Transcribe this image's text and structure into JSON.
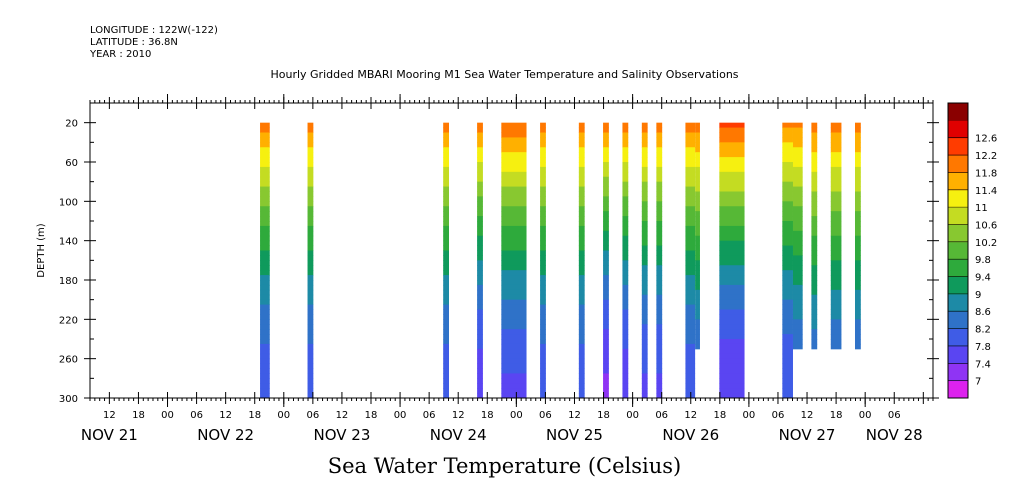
{
  "header": {
    "longitude": "LONGITUDE : 122W(-122)",
    "latitude": "LATITUDE : 36.8N",
    "year": "YEAR : 2010"
  },
  "title": "Hourly Gridded MBARI Mooring M1 Sea Water Temperature and Salinity Observations",
  "units_label": "Sea Water Temperature (Celsius)",
  "chart_data": {
    "type": "heatmap",
    "title": "Hourly Gridded MBARI Mooring M1 Sea Water Temperature and Salinity Observations",
    "ylabel": "DEPTH (m)",
    "colorbar_label": "Sea Water Temperature (Celsius)",
    "y_range": [
      300,
      0
    ],
    "y_ticks": [
      20,
      60,
      100,
      140,
      180,
      220,
      260,
      300
    ],
    "x_range_hours": [
      -16,
      158
    ],
    "x_hour_labels": [
      "12",
      "18",
      "00",
      "06",
      "12",
      "18",
      "00",
      "06",
      "12",
      "18",
      "00",
      "06",
      "12",
      "18",
      "00",
      "06",
      "12",
      "18",
      "00",
      "06",
      "12",
      "18",
      "00",
      "06",
      "12",
      "18",
      "00",
      "06"
    ],
    "x_hour_label_positions": [
      -12,
      -6,
      0,
      6,
      12,
      18,
      24,
      30,
      36,
      42,
      48,
      54,
      60,
      66,
      72,
      78,
      84,
      90,
      96,
      102,
      108,
      114,
      120,
      126,
      132,
      138,
      144,
      150
    ],
    "x_day_labels": [
      {
        "label": "NOV 21",
        "hour": -12
      },
      {
        "label": "NOV 22",
        "hour": 12
      },
      {
        "label": "NOV 23",
        "hour": 36
      },
      {
        "label": "NOV 24",
        "hour": 60
      },
      {
        "label": "NOV 25",
        "hour": 84
      },
      {
        "label": "NOV 26",
        "hour": 108
      },
      {
        "label": "NOV 27",
        "hour": 132
      },
      {
        "label": "NOV 28",
        "hour": 150
      }
    ],
    "color_levels": [
      7,
      7.4,
      7.8,
      8.2,
      8.6,
      9,
      9.4,
      9.8,
      10.2,
      10.6,
      11,
      11.4,
      11.8,
      12.2,
      12.6
    ],
    "colorbar_colors": [
      "#dd22ee",
      "#8f34f4",
      "#5a45f2",
      "#3f5ce6",
      "#2f72c8",
      "#1d8aa6",
      "#0f9a5c",
      "#2eaa3c",
      "#56b836",
      "#88c830",
      "#c4dc22",
      "#f6f010",
      "#ffb000",
      "#ff7800",
      "#ff3c00",
      "#e00000",
      "#8a0000"
    ],
    "observation_segments": [
      {
        "start": 19.1,
        "end": 21.1,
        "max_depth": 300,
        "surface_temp": 12.0,
        "deep_temp": 7.9
      },
      {
        "start": 28.9,
        "end": 30.1,
        "max_depth": 300,
        "surface_temp": 12.0,
        "deep_temp": 7.9
      },
      {
        "start": 56.9,
        "end": 58.1,
        "max_depth": 300,
        "surface_temp": 12.0,
        "deep_temp": 7.9
      },
      {
        "start": 63.9,
        "end": 65.1,
        "max_depth": 300,
        "surface_temp": 12.0,
        "deep_temp": 7.5
      },
      {
        "start": 68.9,
        "end": 74.1,
        "max_depth": 300,
        "surface_temp": 12.2,
        "deep_temp": 7.7
      },
      {
        "start": 76.9,
        "end": 78.1,
        "max_depth": 300,
        "surface_temp": 12.0,
        "deep_temp": 7.9
      },
      {
        "start": 84.9,
        "end": 86.1,
        "max_depth": 300,
        "surface_temp": 12.0,
        "deep_temp": 7.9
      },
      {
        "start": 89.9,
        "end": 91.1,
        "max_depth": 300,
        "surface_temp": 12.0,
        "deep_temp": 7.3
      },
      {
        "start": 93.9,
        "end": 95.1,
        "max_depth": 300,
        "surface_temp": 12.0,
        "deep_temp": 7.5
      },
      {
        "start": 97.9,
        "end": 99.1,
        "max_depth": 300,
        "surface_temp": 12.0,
        "deep_temp": 7.7
      },
      {
        "start": 100.9,
        "end": 102.1,
        "max_depth": 300,
        "surface_temp": 12.0,
        "deep_temp": 7.7
      },
      {
        "start": 106.9,
        "end": 108.9,
        "max_depth": 300,
        "surface_temp": 12.0,
        "deep_temp": 7.9
      },
      {
        "start": 108.9,
        "end": 109.9,
        "max_depth": 250,
        "surface_temp": 12.0,
        "deep_temp": 8.1
      },
      {
        "start": 113.9,
        "end": 119.1,
        "max_depth": 300,
        "surface_temp": 12.4,
        "deep_temp": 7.4
      },
      {
        "start": 126.9,
        "end": 129.1,
        "max_depth": 300,
        "surface_temp": 11.9,
        "deep_temp": 7.8
      },
      {
        "start": 129.1,
        "end": 131.1,
        "max_depth": 250,
        "surface_temp": 11.9,
        "deep_temp": 8.1
      },
      {
        "start": 132.9,
        "end": 134.1,
        "max_depth": 250,
        "surface_temp": 12.0,
        "deep_temp": 8.2
      },
      {
        "start": 136.9,
        "end": 139.1,
        "max_depth": 250,
        "surface_temp": 12.0,
        "deep_temp": 8.1
      },
      {
        "start": 141.9,
        "end": 143.1,
        "max_depth": 250,
        "surface_temp": 12.0,
        "deep_temp": 8.1
      }
    ]
  }
}
